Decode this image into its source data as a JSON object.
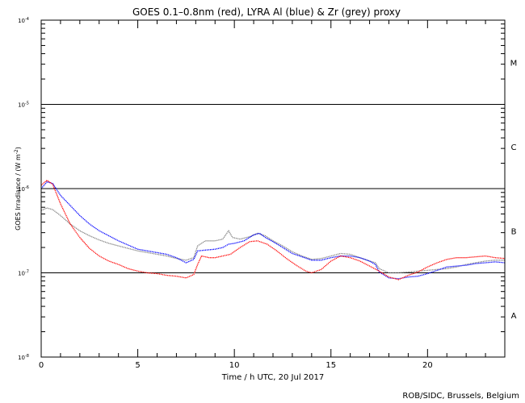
{
  "chart_data": {
    "type": "line",
    "title": "GOES 0.1–0.8nm (red), LYRA Al (blue) & Zr (grey) proxy",
    "xlabel": "Time / h UTC, 20 Jul 2017",
    "ylabel": "GOES Irradiance / (W m",
    "ylabel_sup": "-2",
    "ylabel_close": ")",
    "footer": "ROB/SIDC, Brussels, Belgium",
    "x_range": [
      0,
      24
    ],
    "y_range_log10": [
      -8,
      -4
    ],
    "x_ticks": [
      {
        "value": 0,
        "label": "0"
      },
      {
        "value": 5,
        "label": "5"
      },
      {
        "value": 10,
        "label": "10"
      },
      {
        "value": 15,
        "label": "15"
      },
      {
        "value": 20,
        "label": "20"
      }
    ],
    "y_ticks": [
      {
        "exp": -8,
        "base": "10",
        "sup": "-8"
      },
      {
        "exp": -7,
        "base": "10",
        "sup": "-7"
      },
      {
        "exp": -6,
        "base": "10",
        "sup": "-6"
      },
      {
        "exp": -5,
        "base": "10",
        "sup": "-5"
      },
      {
        "exp": -4,
        "base": "10",
        "sup": "-4"
      }
    ],
    "flare_classes": [
      {
        "label": "A",
        "log_center": -7.5
      },
      {
        "label": "B",
        "log_center": -6.5
      },
      {
        "label": "C",
        "log_center": -5.5
      },
      {
        "label": "M",
        "log_center": -4.5
      }
    ],
    "class_lines_log10": [
      -7,
      -6,
      -5
    ],
    "series": [
      {
        "name": "Zr proxy",
        "color": "#808080",
        "points": [
          [
            0,
            -6.26
          ],
          [
            0.3,
            -6.23
          ],
          [
            0.6,
            -6.25
          ],
          [
            1,
            -6.32
          ],
          [
            1.5,
            -6.42
          ],
          [
            2,
            -6.5
          ],
          [
            2.5,
            -6.56
          ],
          [
            3,
            -6.61
          ],
          [
            3.5,
            -6.65
          ],
          [
            4,
            -6.68
          ],
          [
            4.5,
            -6.71
          ],
          [
            5,
            -6.74
          ],
          [
            5.5,
            -6.76
          ],
          [
            6,
            -6.78
          ],
          [
            6.5,
            -6.8
          ],
          [
            7,
            -6.83
          ],
          [
            7.5,
            -6.85
          ],
          [
            7.9,
            -6.82
          ],
          [
            8.1,
            -6.68
          ],
          [
            8.5,
            -6.62
          ],
          [
            9,
            -6.62
          ],
          [
            9.4,
            -6.6
          ],
          [
            9.7,
            -6.5
          ],
          [
            9.9,
            -6.58
          ],
          [
            10.3,
            -6.6
          ],
          [
            10.8,
            -6.57
          ],
          [
            11.2,
            -6.53
          ],
          [
            11.6,
            -6.56
          ],
          [
            12,
            -6.62
          ],
          [
            12.5,
            -6.68
          ],
          [
            13,
            -6.75
          ],
          [
            13.5,
            -6.8
          ],
          [
            14,
            -6.84
          ],
          [
            14.5,
            -6.83
          ],
          [
            15,
            -6.8
          ],
          [
            15.5,
            -6.77
          ],
          [
            16,
            -6.78
          ],
          [
            16.5,
            -6.82
          ],
          [
            17,
            -6.86
          ],
          [
            17.3,
            -6.88
          ],
          [
            17.5,
            -6.95
          ],
          [
            18,
            -7.0
          ],
          [
            18.5,
            -7.0
          ],
          [
            19,
            -6.99
          ],
          [
            19.5,
            -6.98
          ],
          [
            20,
            -6.97
          ],
          [
            20.5,
            -6.96
          ],
          [
            21,
            -6.95
          ],
          [
            21.5,
            -6.93
          ],
          [
            22,
            -6.9
          ],
          [
            22.5,
            -6.88
          ],
          [
            23,
            -6.86
          ],
          [
            23.5,
            -6.85
          ],
          [
            24,
            -6.85
          ]
        ]
      },
      {
        "name": "LYRA Al proxy",
        "color": "#0000ff",
        "points": [
          [
            0,
            -6.0
          ],
          [
            0.3,
            -5.92
          ],
          [
            0.6,
            -5.94
          ],
          [
            1,
            -6.08
          ],
          [
            1.5,
            -6.2
          ],
          [
            2,
            -6.32
          ],
          [
            2.5,
            -6.42
          ],
          [
            3,
            -6.5
          ],
          [
            3.5,
            -6.56
          ],
          [
            4,
            -6.62
          ],
          [
            4.5,
            -6.67
          ],
          [
            5,
            -6.72
          ],
          [
            5.5,
            -6.74
          ],
          [
            6,
            -6.76
          ],
          [
            6.5,
            -6.78
          ],
          [
            7,
            -6.82
          ],
          [
            7.5,
            -6.88
          ],
          [
            7.9,
            -6.84
          ],
          [
            8.1,
            -6.74
          ],
          [
            8.5,
            -6.73
          ],
          [
            9,
            -6.72
          ],
          [
            9.4,
            -6.7
          ],
          [
            9.7,
            -6.66
          ],
          [
            10,
            -6.65
          ],
          [
            10.5,
            -6.62
          ],
          [
            11,
            -6.55
          ],
          [
            11.3,
            -6.53
          ],
          [
            11.6,
            -6.58
          ],
          [
            12,
            -6.63
          ],
          [
            12.5,
            -6.7
          ],
          [
            13,
            -6.77
          ],
          [
            13.5,
            -6.81
          ],
          [
            14,
            -6.85
          ],
          [
            14.5,
            -6.85
          ],
          [
            15,
            -6.82
          ],
          [
            15.5,
            -6.8
          ],
          [
            16,
            -6.8
          ],
          [
            16.5,
            -6.82
          ],
          [
            17,
            -6.86
          ],
          [
            17.3,
            -6.9
          ],
          [
            17.5,
            -6.99
          ],
          [
            18,
            -7.06
          ],
          [
            18.5,
            -7.07
          ],
          [
            19,
            -7.05
          ],
          [
            19.5,
            -7.04
          ],
          [
            20,
            -7.01
          ],
          [
            20.5,
            -6.97
          ],
          [
            21,
            -6.93
          ],
          [
            21.5,
            -6.92
          ],
          [
            22,
            -6.91
          ],
          [
            22.5,
            -6.89
          ],
          [
            23,
            -6.88
          ],
          [
            23.5,
            -6.87
          ],
          [
            24,
            -6.88
          ]
        ]
      },
      {
        "name": "GOES 0.1-0.8nm",
        "color": "#ff0000",
        "points": [
          [
            0,
            -5.96
          ],
          [
            0.3,
            -5.9
          ],
          [
            0.6,
            -5.95
          ],
          [
            1,
            -6.18
          ],
          [
            1.5,
            -6.42
          ],
          [
            2,
            -6.58
          ],
          [
            2.5,
            -6.71
          ],
          [
            3,
            -6.8
          ],
          [
            3.5,
            -6.86
          ],
          [
            4,
            -6.9
          ],
          [
            4.5,
            -6.95
          ],
          [
            5,
            -6.98
          ],
          [
            5.5,
            -7.0
          ],
          [
            6,
            -7.01
          ],
          [
            6.5,
            -7.03
          ],
          [
            7,
            -7.04
          ],
          [
            7.5,
            -7.06
          ],
          [
            7.9,
            -7.02
          ],
          [
            8.1,
            -6.9
          ],
          [
            8.3,
            -6.8
          ],
          [
            8.7,
            -6.82
          ],
          [
            9,
            -6.82
          ],
          [
            9.4,
            -6.8
          ],
          [
            9.8,
            -6.78
          ],
          [
            10.3,
            -6.7
          ],
          [
            10.8,
            -6.63
          ],
          [
            11.2,
            -6.62
          ],
          [
            11.7,
            -6.66
          ],
          [
            12.2,
            -6.74
          ],
          [
            12.7,
            -6.83
          ],
          [
            13.2,
            -6.91
          ],
          [
            13.7,
            -6.98
          ],
          [
            14,
            -7.0
          ],
          [
            14.5,
            -6.96
          ],
          [
            15,
            -6.86
          ],
          [
            15.5,
            -6.8
          ],
          [
            16,
            -6.82
          ],
          [
            16.5,
            -6.86
          ],
          [
            17,
            -6.92
          ],
          [
            17.5,
            -6.98
          ],
          [
            18,
            -7.05
          ],
          [
            18.5,
            -7.08
          ],
          [
            19,
            -7.03
          ],
          [
            19.5,
            -6.99
          ],
          [
            20,
            -6.93
          ],
          [
            20.5,
            -6.88
          ],
          [
            21,
            -6.84
          ],
          [
            21.5,
            -6.82
          ],
          [
            22,
            -6.82
          ],
          [
            22.5,
            -6.81
          ],
          [
            23,
            -6.8
          ],
          [
            23.5,
            -6.82
          ],
          [
            24,
            -6.83
          ]
        ]
      }
    ]
  }
}
